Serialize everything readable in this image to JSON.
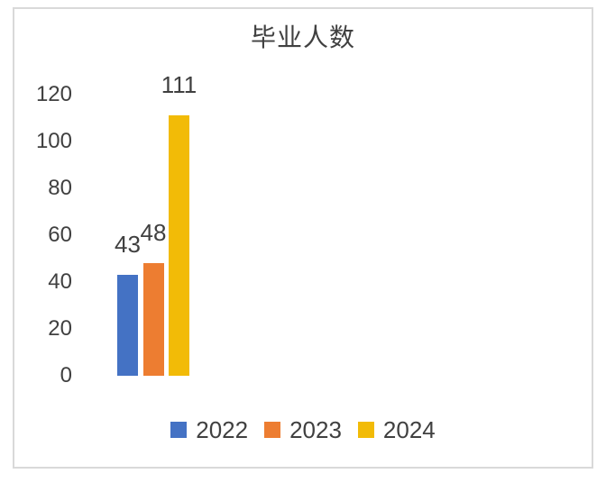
{
  "window": {
    "background": "#FFFFFF",
    "frame_border_color": "#D9D9D9",
    "text_color": "#404040"
  },
  "chart_data": {
    "type": "bar",
    "title": "毕业人数",
    "categories": [
      "2022",
      "2023",
      "2024"
    ],
    "values": [
      43,
      48,
      111
    ],
    "data_labels": [
      "43",
      "48",
      "111"
    ],
    "colors": [
      "#4472C4",
      "#ED7D31",
      "#F2BB07"
    ],
    "xlabel": "",
    "ylabel": "",
    "ylim": [
      0,
      120
    ],
    "yticks": [
      0,
      20,
      40,
      60,
      80,
      100,
      120
    ],
    "grid": false,
    "legend": {
      "position": "bottom",
      "entries": [
        "2022",
        "2023",
        "2024"
      ]
    }
  }
}
